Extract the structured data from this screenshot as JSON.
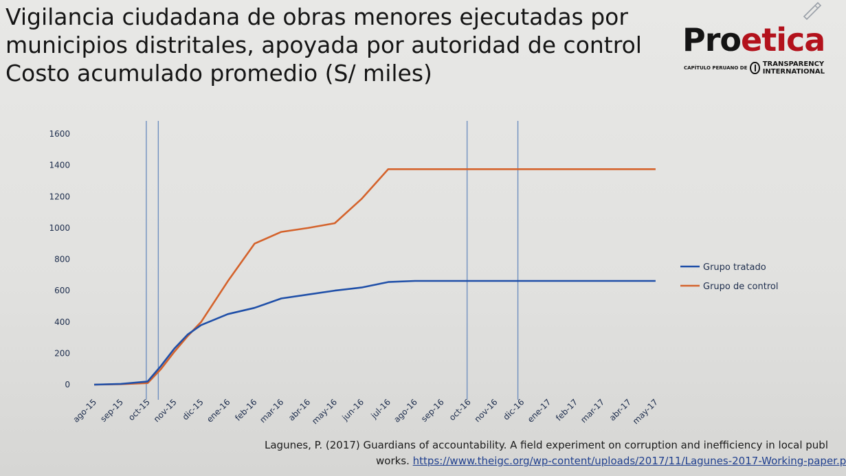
{
  "slide": {
    "title_lines": [
      "Vigilancia ciudadana de obras menores ejecutadas por",
      "municipios distritales, apoyada por autoridad de control",
      "Costo acumulado promedio (S/ miles)"
    ]
  },
  "logo": {
    "word": "Proetica",
    "sub_left": "CAPÍTULO PERUANO DE",
    "sub_right_1": "TRANSPARENCY",
    "sub_right_2": "INTERNATIONAL"
  },
  "citation": {
    "line1": "Lagunes, P. (2017) Guardians of accountability. A field experiment on corruption and inefficiency in local publ",
    "line2_prefix": "works. ",
    "link": "https://www.theigc.org/wp-content/uploads/2017/11/Lagunes-2017-Working-paper.p"
  },
  "chart_data": {
    "type": "line",
    "categories": [
      "ago-15",
      "sep-15",
      "oct-15",
      "nov-15",
      "dic-15",
      "ene-16",
      "feb-16",
      "mar-16",
      "abr-16",
      "may-16",
      "jun-16",
      "jul-16",
      "ago-16",
      "sep-16",
      "oct-16",
      "nov-16",
      "dic-16",
      "ene-17",
      "feb-17",
      "mar-17",
      "abr-17",
      "may-17"
    ],
    "yticks": [
      0,
      200,
      400,
      600,
      800,
      1000,
      1200,
      1400,
      1600
    ],
    "ylim": [
      0,
      1600
    ],
    "grid": false,
    "legend_position": "right",
    "series": [
      {
        "name": "Grupo tratado",
        "color": "#1f4fa8",
        "points": [
          [
            0,
            0
          ],
          [
            1,
            5
          ],
          [
            2,
            20
          ],
          [
            2.5,
            120
          ],
          [
            3,
            230
          ],
          [
            3.5,
            320
          ],
          [
            4,
            380
          ],
          [
            5,
            450
          ],
          [
            6,
            490
          ],
          [
            7,
            550
          ],
          [
            8,
            575
          ],
          [
            9,
            600
          ],
          [
            10,
            620
          ],
          [
            11,
            655
          ],
          [
            12,
            662
          ],
          [
            13,
            662
          ],
          [
            14,
            662
          ],
          [
            15,
            662
          ],
          [
            16,
            662
          ],
          [
            17,
            662
          ],
          [
            18,
            662
          ],
          [
            19,
            662
          ],
          [
            20,
            662
          ],
          [
            21,
            662
          ]
        ]
      },
      {
        "name": "Grupo de control",
        "color": "#d4622b",
        "points": [
          [
            0,
            0
          ],
          [
            1,
            3
          ],
          [
            2,
            10
          ],
          [
            2.5,
            100
          ],
          [
            3,
            210
          ],
          [
            3.5,
            310
          ],
          [
            4,
            400
          ],
          [
            5,
            660
          ],
          [
            6,
            900
          ],
          [
            7,
            975
          ],
          [
            8,
            1000
          ],
          [
            9,
            1030
          ],
          [
            10,
            1185
          ],
          [
            11,
            1375
          ],
          [
            12,
            1375
          ],
          [
            13,
            1375
          ],
          [
            14,
            1375
          ],
          [
            15,
            1375
          ],
          [
            16,
            1375
          ],
          [
            17,
            1375
          ],
          [
            18,
            1375
          ],
          [
            19,
            1375
          ],
          [
            20,
            1375
          ],
          [
            21,
            1375
          ]
        ]
      }
    ],
    "vertical_markers": [
      1.95,
      2.4,
      13.95,
      15.85
    ],
    "marker_color": "#6f8fbf"
  }
}
